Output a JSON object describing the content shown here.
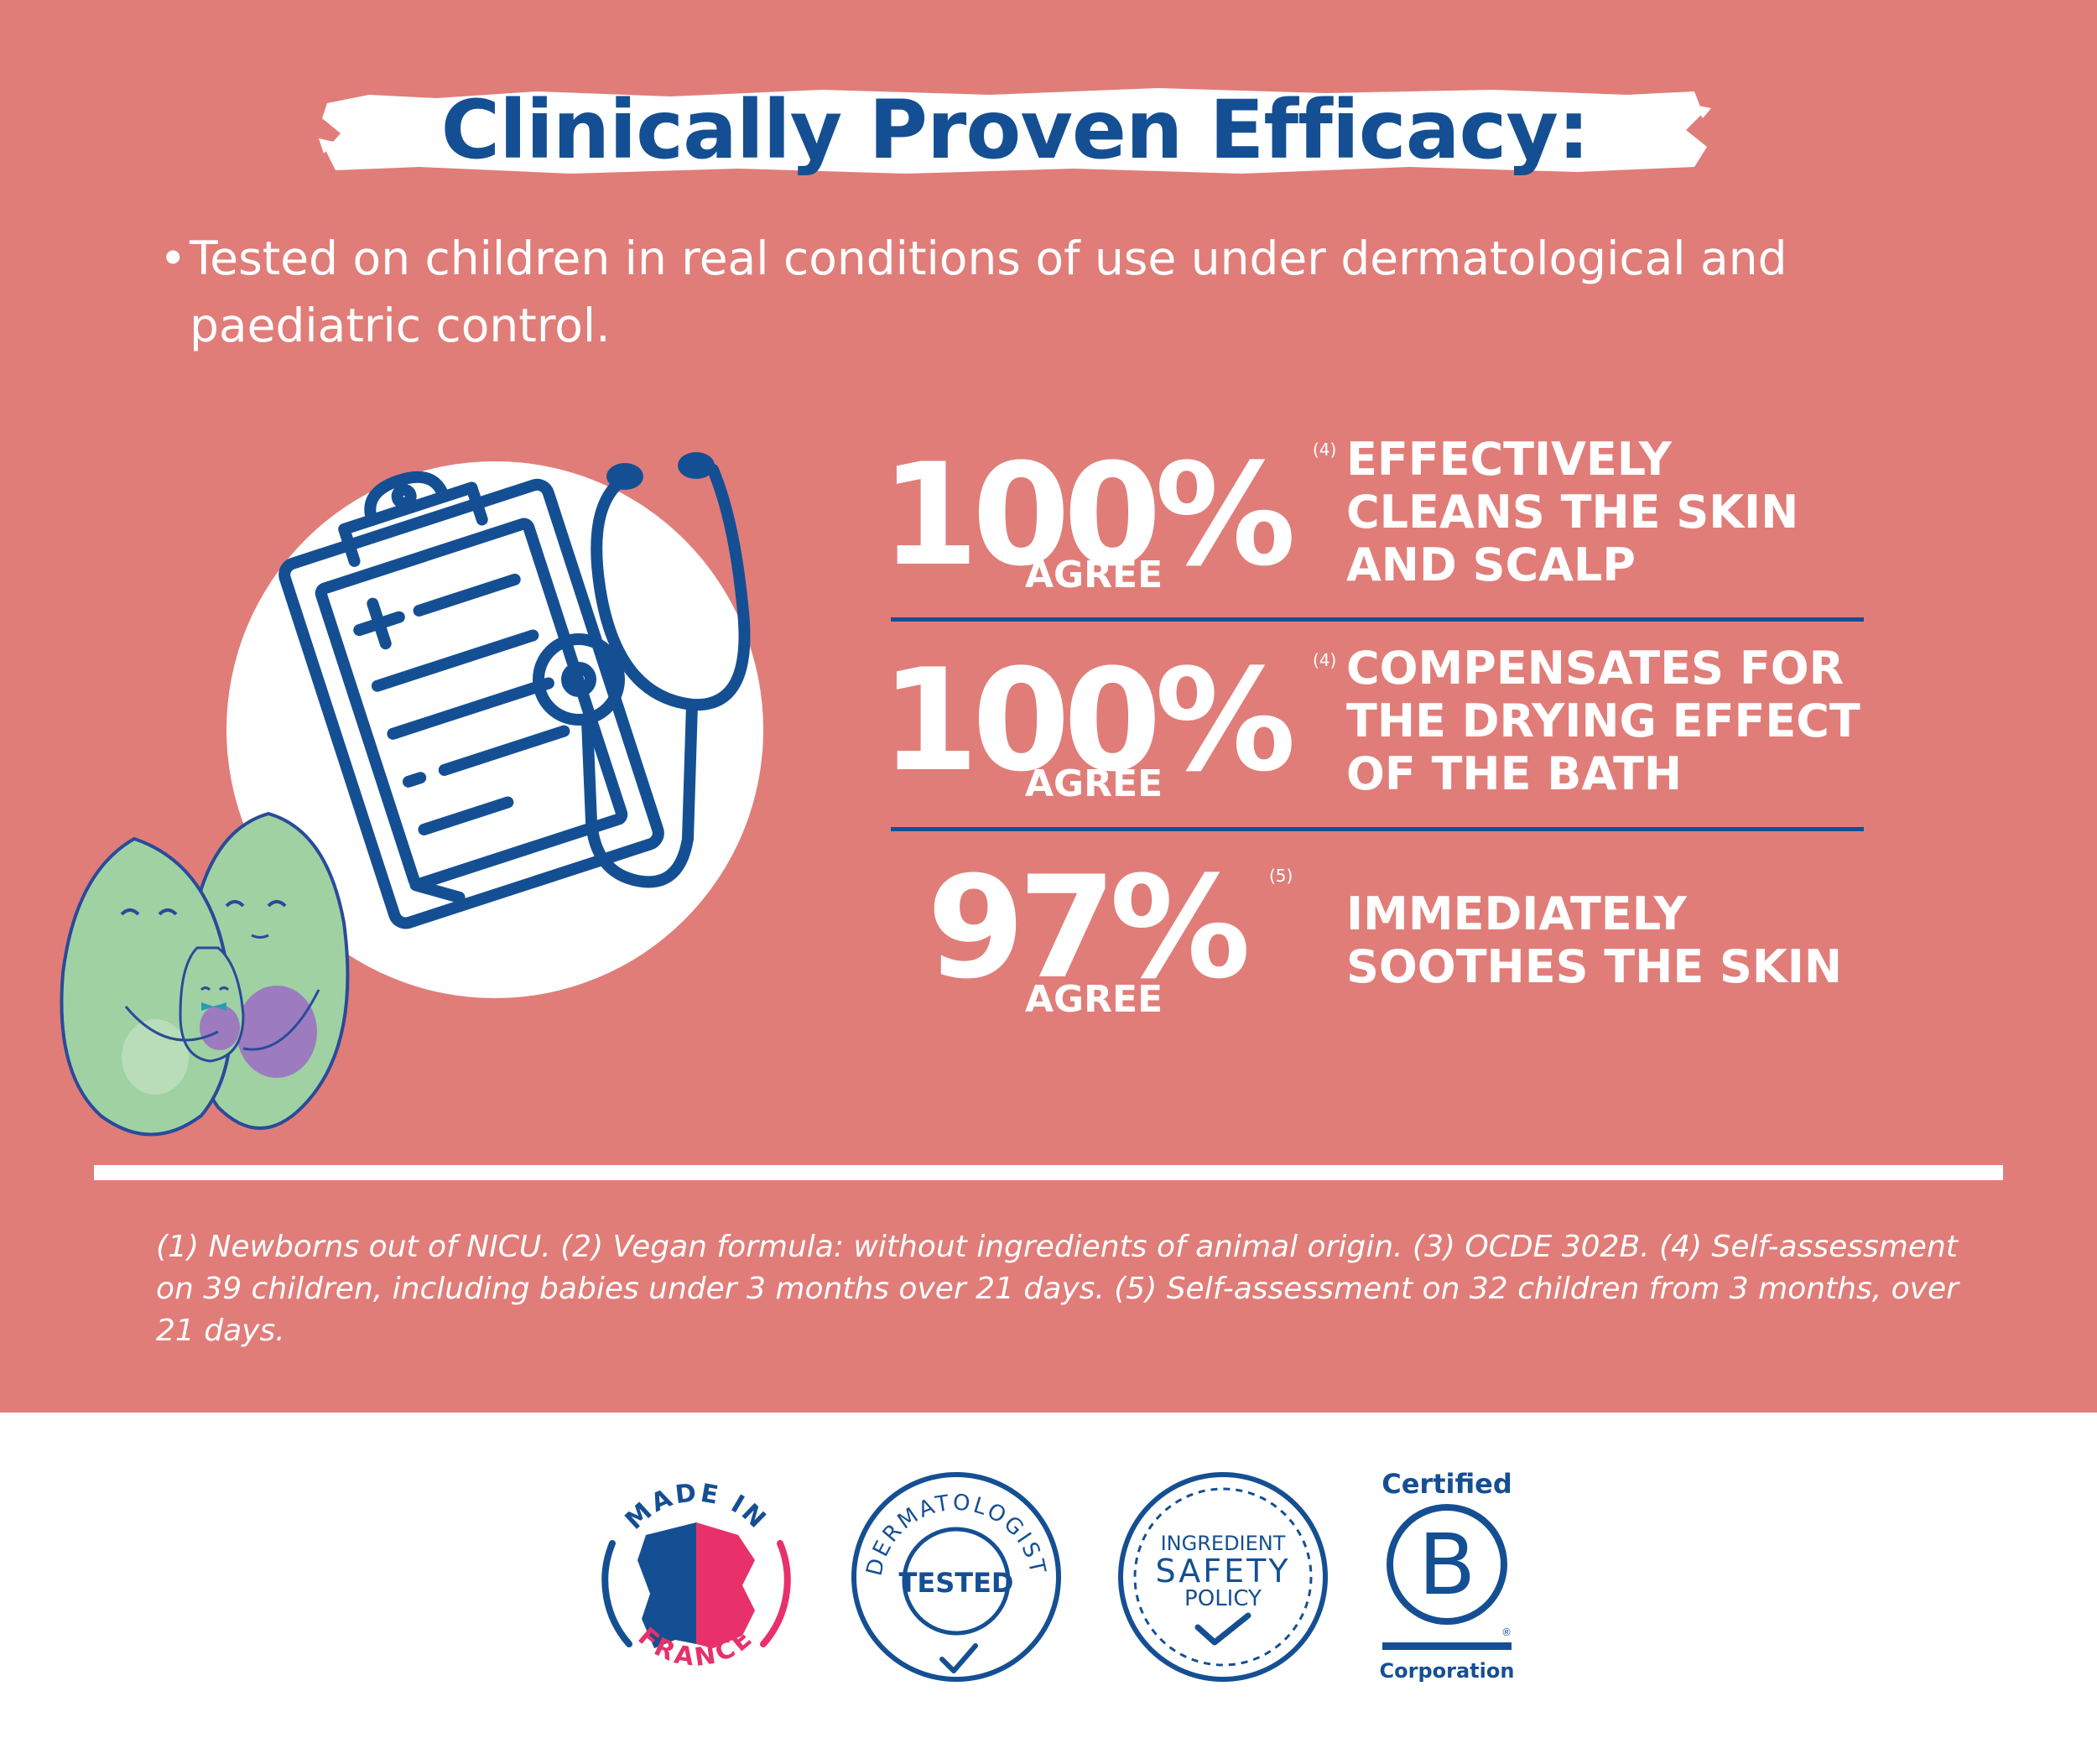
{
  "title": "Clinically Proven Efficacy:",
  "intro": {
    "bullet": "•",
    "text": "Tested on children in real conditions of use under dermatological and paediatric control."
  },
  "stats": [
    {
      "value": "100%",
      "label": "AGREE",
      "note": "(4)",
      "claim": "EFFECTIVELY\nCLEANS THE SKIN\nAND SCALP"
    },
    {
      "value": "100%",
      "label": "AGREE",
      "note": "(4)",
      "claim": "COMPENSATES FOR\nTHE DRYING EFFECT\nOF THE BATH"
    },
    {
      "value": "97%",
      "label": "AGREE",
      "note": "(5)",
      "claim": "IMMEDIATELY\nSOOTHES THE SKIN"
    }
  ],
  "footnote": "(1) Newborns out of NICU. (2) Vegan formula: without ingredients of animal origin. (3) OCDE 302B. (4) Self-assessment on 39 children, including babies under 3 months over 21 days. (5) Self-assessment on 32 children from 3 months, over 21 days.",
  "badges": {
    "made_in_france": {
      "top": "MADE IN",
      "bottom": "FRANCE"
    },
    "dermatologist": {
      "arc": "DERMATOLOGIST",
      "center": "TESTED"
    },
    "ingredient": {
      "line1": "INGREDIENT",
      "line2": "SAFETY",
      "line3": "POLICY"
    },
    "bcorp": {
      "top": "Certified",
      "letter": "B",
      "reg": "®",
      "bottom": "Corporation"
    }
  },
  "colors": {
    "background": "#e07d79",
    "brand_blue": "#154f93",
    "white": "#ffffff",
    "avocado_green": "#9fd1a3",
    "pit_purple": "#9d7bbf",
    "france_red": "#e8306b"
  },
  "icons": [
    "clipboard-icon",
    "stethoscope-icon",
    "avocado-family-illustration",
    "checkmark-icon"
  ]
}
